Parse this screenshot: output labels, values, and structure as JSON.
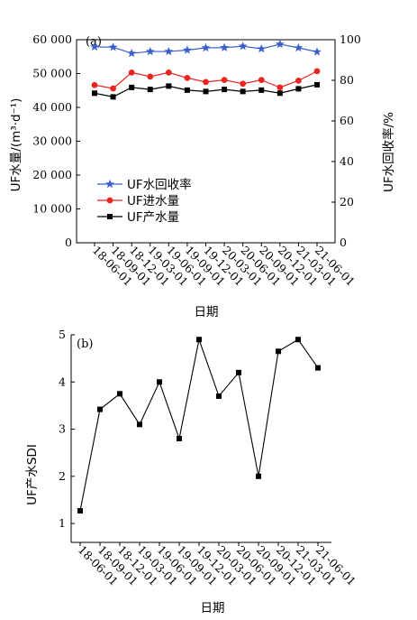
{
  "chart_data": [
    {
      "type": "line",
      "panel_label": "(a)",
      "x": [
        "18-06-01",
        "18-09-01",
        "18-12-01",
        "19-03-01",
        "19-06-01",
        "19-09-01",
        "19-12-01",
        "20-03-01",
        "20-06-01",
        "20-09-01",
        "20-12-01",
        "21-03-01",
        "21-06-01"
      ],
      "xlabel": "日期",
      "ylabel": "UF水量/(m³·d⁻¹)",
      "y2label": "UF水回收率/%",
      "ylim": [
        0,
        60000
      ],
      "y2lim": [
        0,
        100
      ],
      "yticks": [
        "0",
        "10 000",
        "20 000",
        "30 000",
        "40 000",
        "50 000",
        "60 000"
      ],
      "y2ticks": [
        "0",
        "20",
        "40",
        "60",
        "80",
        "100"
      ],
      "legend_position": "lower-left",
      "series": [
        {
          "name": "UF水回收率",
          "axis": "right",
          "marker": "star",
          "color": "#3a5fcd",
          "values": [
            96.5,
            96.3,
            93.3,
            94.2,
            94.2,
            94.9,
            96.0,
            96.1,
            96.8,
            95.5,
            97.8,
            96.0,
            94.0
          ]
        },
        {
          "name": "UF进水量",
          "axis": "left",
          "marker": "circle",
          "color": "#e8251f",
          "values": [
            46600,
            45600,
            50300,
            49100,
            50300,
            48700,
            47500,
            48100,
            47000,
            48100,
            45900,
            47900,
            50700
          ]
        },
        {
          "name": "UF产水量",
          "axis": "left",
          "marker": "square",
          "color": "#000000",
          "values": [
            44200,
            43100,
            45900,
            45300,
            46300,
            45100,
            44700,
            45300,
            44700,
            45100,
            44200,
            45500,
            46700
          ]
        }
      ]
    },
    {
      "type": "line",
      "panel_label": "(b)",
      "x": [
        "18-06-01",
        "18-09-01",
        "18-12-01",
        "19-03-01",
        "19-06-01",
        "19-09-01",
        "19-12-01",
        "20-03-01",
        "20-06-01",
        "20-09-01",
        "20-12-01",
        "21-03-01",
        "21-06-01"
      ],
      "xlabel": "日期",
      "ylabel": "UF产水SDI",
      "ylim": [
        0.6,
        5.0
      ],
      "yticks": [
        "1",
        "2",
        "3",
        "4",
        "5"
      ],
      "series": [
        {
          "marker": "square",
          "color": "#000000",
          "values": [
            1.27,
            3.42,
            3.75,
            3.1,
            4.0,
            2.8,
            4.9,
            3.7,
            4.2,
            2.0,
            4.65,
            4.9,
            4.3
          ]
        }
      ]
    }
  ]
}
